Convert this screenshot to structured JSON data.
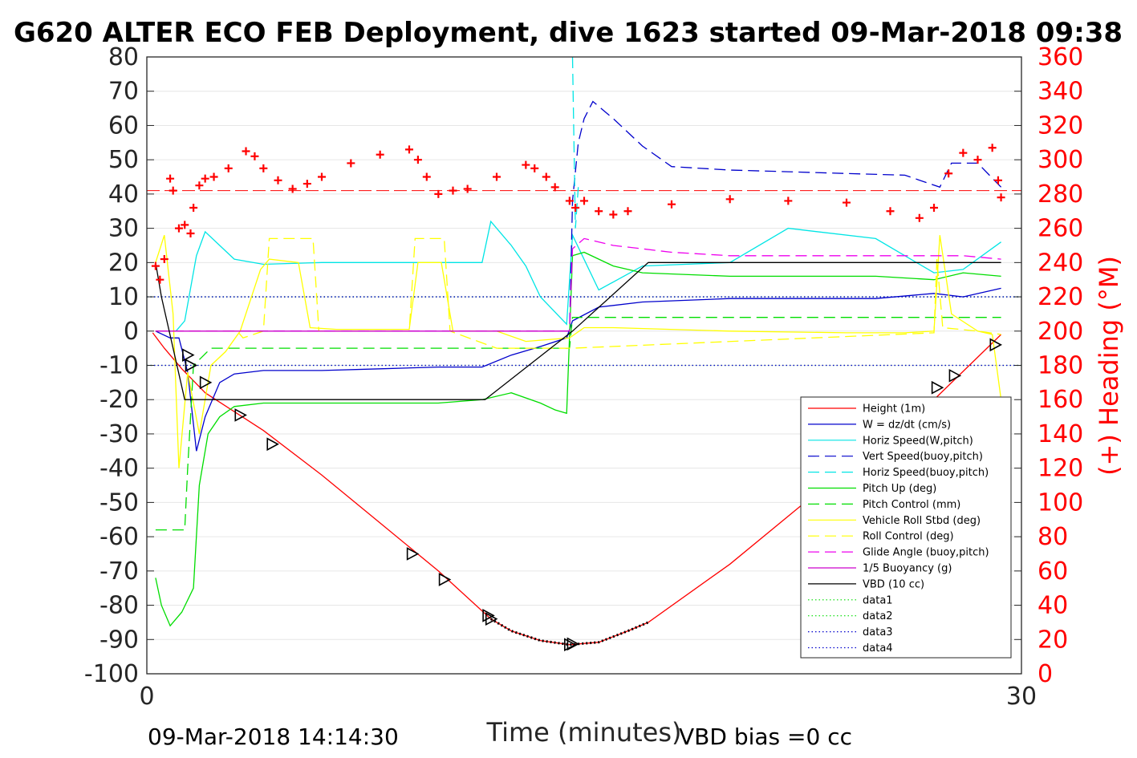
{
  "colors": {
    "height": "#ff0000",
    "w": "#0000cc",
    "horiz_w": "#00e5e5",
    "vert_buoy": "#0000cc",
    "horiz_buoy": "#00e5e5",
    "pitch": "#00dd00",
    "pitch_ctrl": "#00dd00",
    "roll": "#ffff00",
    "roll_ctrl": "#ffff00",
    "glide": "#ee00ee",
    "buoy": "#cc00cc",
    "vbd": "#000000",
    "heading": "#ff0000",
    "axis": "#262626",
    "right_axis": "#ff0000"
  },
  "chart_data": {
    "type": "line",
    "title": "G620 ALTER ECO FEB Deployment, dive 1623 started 09-Mar-2018 09:38",
    "xlabel": "Time (minutes)",
    "ylabel_right": "(+) Heading (°M)",
    "footer_left": "09-Mar-2018 14:14:30",
    "footer_right": "VBD bias =0 cc",
    "xlim": [
      0,
      30
    ],
    "ylim": [
      -100,
      80
    ],
    "ylim_right": [
      0,
      360
    ],
    "x_ticks": [
      "0",
      "30"
    ],
    "y_ticks": [
      "80",
      "70",
      "60",
      "50",
      "40",
      "30",
      "20",
      "10",
      "0",
      "-10",
      "-20",
      "-30",
      "-40",
      "-50",
      "-60",
      "-70",
      "-80",
      "-90",
      "-100"
    ],
    "y_ticks_right": [
      "360",
      "340",
      "320",
      "300",
      "280",
      "260",
      "240",
      "220",
      "200",
      "180",
      "160",
      "140",
      "120",
      "100",
      "80",
      "60",
      "40",
      "20",
      "0"
    ],
    "legend_position": "bottom-right",
    "reference_lines": [
      {
        "name": "data1",
        "y": 10,
        "color": "#00dd00"
      },
      {
        "name": "data2",
        "y": -10,
        "color": "#00dd00"
      },
      {
        "name": "data3",
        "y": 10,
        "color": "#0000cc"
      },
      {
        "name": "data4",
        "y": -10,
        "color": "#0000cc"
      }
    ],
    "heading_target": 282,
    "series": [
      {
        "name": "Height (1m)",
        "key": "height",
        "style": "solid",
        "x": [
          0.2,
          0.6,
          1.2,
          2,
          4,
          6,
          8,
          10,
          11.8,
          12.5,
          13.5,
          14.5,
          15.5,
          16.5,
          17.2,
          20,
          24,
          27,
          29.3
        ],
        "y": [
          -0.5,
          -5,
          -11,
          -18,
          -29,
          -42,
          -56,
          -70,
          -84,
          -87.5,
          -90.3,
          -91.5,
          -90.8,
          -87.5,
          -85,
          -68,
          -40,
          -20,
          -1
        ]
      },
      {
        "name": "W = dz/dt (cm/s)",
        "key": "w",
        "style": "solid",
        "x": [
          0.3,
          0.8,
          1.1,
          1.4,
          1.7,
          2.0,
          2.5,
          3,
          4,
          6,
          8,
          10,
          11.5,
          12.5,
          13.5,
          14.4,
          14.6,
          15.5,
          17,
          20,
          25,
          27,
          28,
          29.3
        ],
        "y": [
          0,
          -2,
          -2,
          -12,
          -35,
          -25,
          -15,
          -12.5,
          -11.5,
          -11.5,
          -11,
          -10.5,
          -10.5,
          -7,
          -4.5,
          -2,
          3,
          7,
          8.5,
          9.5,
          9.5,
          11,
          10,
          12.5
        ]
      },
      {
        "name": "Horiz Speed(W,pitch)",
        "key": "horiz_w",
        "style": "solid",
        "x": [
          0.3,
          1.0,
          1.3,
          1.7,
          2.0,
          2.5,
          3,
          4,
          6,
          8,
          10,
          11.5,
          11.8,
          12.5,
          13,
          13.5,
          14.4,
          14.6,
          15.5,
          17,
          20,
          22,
          25,
          27,
          28,
          29.3
        ],
        "y": [
          0,
          0,
          3,
          22,
          29,
          25,
          21,
          19.5,
          20,
          20,
          20,
          20,
          32,
          25,
          19,
          10,
          2,
          28,
          12,
          19,
          20,
          30,
          27,
          17,
          18,
          26
        ]
      },
      {
        "name": "Vert Speed(buoy,pitch)",
        "key": "vert_buoy",
        "style": "dashed",
        "x": [
          0.3,
          1.0,
          1.5,
          14.0,
          14.5,
          14.6,
          14.8,
          15.0,
          15.3,
          16,
          17,
          18,
          20,
          22,
          24,
          26,
          27.2,
          27.6,
          28.5,
          29.3
        ],
        "y": [
          0,
          0,
          0,
          0,
          0,
          38,
          55,
          62,
          67,
          62,
          54,
          48,
          47,
          46.5,
          46,
          45.5,
          42,
          49,
          49,
          42
        ]
      },
      {
        "name": "Horiz Speed(buoy,pitch)",
        "key": "horiz_buoy",
        "style": "dashed",
        "x": [
          14.6,
          14.7,
          14.8
        ],
        "y": [
          80,
          30,
          42
        ]
      },
      {
        "name": "Pitch Up (deg)",
        "key": "pitch",
        "style": "solid",
        "x": [
          0.3,
          0.5,
          0.8,
          1.2,
          1.6,
          1.8,
          2.1,
          2.5,
          3,
          4,
          6,
          8,
          10,
          11.5,
          12.5,
          13.5,
          14.0,
          14.4,
          14.6,
          15,
          16,
          17,
          20,
          25,
          27,
          28,
          29.3
        ],
        "y": [
          -72,
          -80,
          -86,
          -82,
          -75,
          -45,
          -30,
          -25,
          -22,
          -21,
          -21,
          -21,
          -21,
          -20,
          -18,
          -21,
          -23,
          -24,
          22,
          23,
          19,
          17,
          16,
          16,
          15,
          17,
          16
        ]
      },
      {
        "name": "Pitch Control (mm)",
        "key": "pitch_ctrl",
        "style": "dashed",
        "x": [
          0.3,
          1.3,
          1.4,
          1.6,
          2.2,
          3,
          12,
          14.5,
          14.6,
          20,
          29.3
        ],
        "y": [
          -58,
          -58,
          -40,
          -10,
          -5,
          -5,
          -5,
          -5,
          4,
          4,
          4
        ]
      },
      {
        "name": "Vehicle Roll Stbd (deg)",
        "key": "roll",
        "style": "solid",
        "x": [
          0.3,
          0.6,
          0.9,
          1.1,
          1.4,
          1.8,
          2.2,
          2.7,
          3.2,
          3.9,
          4.2,
          5.2,
          5.6,
          6.5,
          8,
          9.0,
          9.3,
          10.1,
          10.5,
          12,
          13,
          14.5,
          15,
          16,
          20,
          24,
          26,
          27.0,
          27.2,
          27.6,
          28.5,
          29.0,
          29.3
        ],
        "y": [
          20,
          28,
          5,
          -40,
          -12,
          -30,
          -10,
          -6,
          0,
          18,
          21,
          20,
          1,
          0.5,
          0.5,
          0.5,
          20,
          20,
          0,
          0,
          -3,
          -2,
          1,
          1,
          0,
          -0.5,
          -0.5,
          0,
          28,
          5,
          0,
          -1,
          -20
        ]
      },
      {
        "name": "Roll Control (deg)",
        "key": "roll_ctrl",
        "style": "dashed",
        "x": [
          0.3,
          2.8,
          3.1,
          3.3,
          4.0,
          4.2,
          5.7,
          5.9,
          6.1,
          9.0,
          9.2,
          10.2,
          10.4,
          12,
          14.6,
          27.0,
          27.1,
          27.3,
          28.5,
          29.3
        ],
        "y": [
          0,
          0,
          0,
          -2,
          0,
          27,
          27,
          0,
          0,
          0,
          27,
          27,
          0,
          -5,
          -5,
          -0.5,
          21,
          1,
          0,
          -1
        ]
      },
      {
        "name": "Glide Angle (buoy,pitch)",
        "key": "glide",
        "style": "dashed",
        "x": [
          0.3,
          14.5,
          14.6,
          15,
          16,
          17,
          18,
          20,
          24,
          27,
          28,
          29.3
        ],
        "y": [
          0,
          0,
          24,
          27,
          25,
          24,
          23,
          22,
          22,
          22,
          22,
          21
        ]
      },
      {
        "name": "1/5 Buoyancy (g)",
        "key": "buoy",
        "style": "solid",
        "x": [
          0.3,
          14.5
        ],
        "y": [
          0,
          0
        ]
      },
      {
        "name": "VBD (10 cc)",
        "key": "vbd",
        "style": "solid",
        "x": [
          0.3,
          0.5,
          1.3,
          11.6,
          14.6,
          17.2,
          29.3
        ],
        "y": [
          20,
          10,
          -20,
          -20,
          0,
          20,
          20
        ]
      }
    ],
    "heading": {
      "name": "Heading (°M)",
      "x": [
        0.3,
        0.45,
        0.6,
        0.8,
        0.9,
        1.1,
        1.3,
        1.5,
        1.6,
        1.8,
        2.0,
        2.3,
        2.8,
        3.4,
        3.7,
        4.0,
        4.5,
        5,
        5.5,
        6,
        7,
        8,
        9,
        9.3,
        9.6,
        10,
        10.5,
        11,
        12,
        13,
        13.3,
        13.7,
        14.0,
        14.5,
        14.7,
        15,
        15.5,
        16,
        16.5,
        18,
        20,
        22,
        24,
        25.5,
        26.5,
        27,
        27.5,
        28,
        28.5,
        29,
        29.2,
        29.3
      ],
      "y": [
        238,
        230,
        242,
        289,
        282,
        260,
        262,
        257,
        272,
        285,
        289,
        290,
        295,
        305,
        302,
        295,
        288,
        283,
        286,
        290,
        298,
        303,
        306,
        300,
        290,
        280,
        282,
        283,
        290,
        297,
        295,
        290,
        284,
        276,
        272,
        276,
        270,
        268,
        270,
        274,
        277,
        276,
        275,
        270,
        266,
        272,
        292,
        304,
        300,
        307,
        288,
        278
      ]
    },
    "dive_markers": {
      "x": [
        1.4,
        1.5,
        2.0,
        3.2,
        4.3,
        9.1,
        10.2,
        11.7,
        11.8,
        14.5,
        14.6,
        27.1,
        27.7,
        29.1
      ],
      "y": [
        -7,
        -10,
        -15,
        -24.5,
        -33,
        -65,
        -72.5,
        -83,
        -84,
        -91.5,
        -91.3,
        -16.5,
        -13,
        -4
      ]
    },
    "dive_dots": {
      "x": [
        11.8,
        12.5,
        13.5,
        14.5,
        15.5,
        16.5,
        17.2
      ],
      "y": [
        -84,
        -87.5,
        -90.3,
        -91.5,
        -90.8,
        -87.5,
        -85
      ]
    }
  }
}
